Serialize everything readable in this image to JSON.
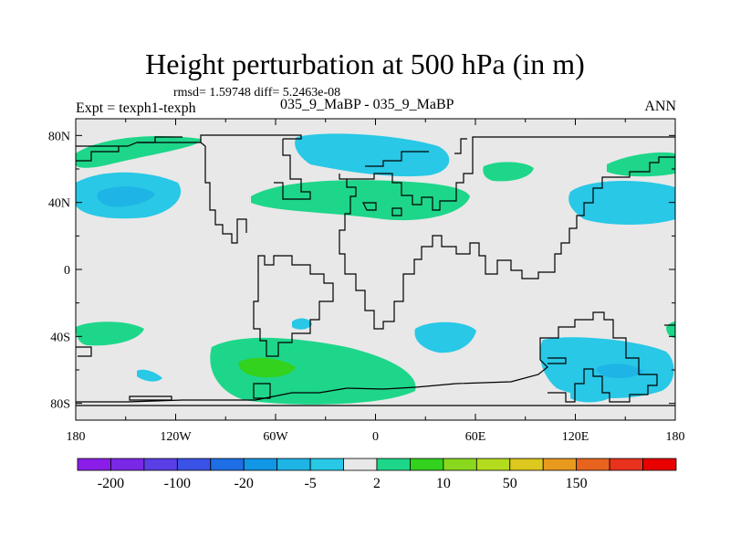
{
  "header": {
    "title": "Height perturbation at 500 hPa (in m)",
    "stats": "rmsd= 1.59748 diff= 5.2463e-08",
    "left_label": "Expt = texph1-texph",
    "center_label": "035_9_MaBP - 035_9_MaBP",
    "right_label": "ANN"
  },
  "map": {
    "lat_ticks": [
      "80N",
      "40N",
      "0",
      "40S",
      "80S"
    ],
    "lat_values": [
      80,
      40,
      0,
      -40,
      -80
    ],
    "lon_ticks": [
      "180",
      "120W",
      "60W",
      "0",
      "60E",
      "120E",
      "180"
    ],
    "lon_values": [
      -180,
      -120,
      -60,
      0,
      60,
      120,
      180
    ],
    "lon_range": [
      -180,
      180
    ],
    "lat_range": [
      -90,
      90
    ],
    "background_color": "#e8e8e8",
    "coastline_color": "#000000"
  },
  "colorbar": {
    "colors": [
      "#8a1ee8",
      "#7a28e6",
      "#5a3ee6",
      "#3a52e6",
      "#1e6ee6",
      "#1296e6",
      "#1eb4e6",
      "#28c8e6",
      "#e8e8e8",
      "#1ed68a",
      "#32d21e",
      "#8ad81e",
      "#b4dc1e",
      "#dcc81e",
      "#e89a1e",
      "#e8641e",
      "#e8321e",
      "#e80000"
    ],
    "labels": [
      "-200",
      "-100",
      "-20",
      "-5",
      "2",
      "10",
      "50",
      "150"
    ],
    "label_boundaries": [
      1,
      3,
      5,
      7,
      9,
      11,
      13,
      15
    ]
  }
}
